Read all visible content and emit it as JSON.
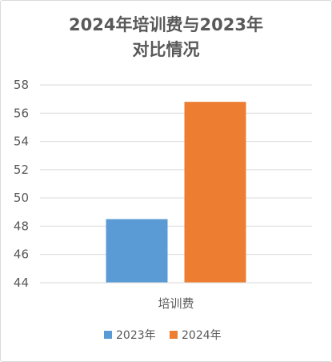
{
  "chart_data": {
    "type": "bar",
    "title_lines": [
      "2024年培训费与2023年",
      "对比情况"
    ],
    "categories": [
      "培训费"
    ],
    "series": [
      {
        "name": "2023年",
        "values": [
          48.5
        ],
        "color": "#5b9bd5"
      },
      {
        "name": "2024年",
        "values": [
          56.8
        ],
        "color": "#ed7d31"
      }
    ],
    "ylim": [
      44,
      58
    ],
    "yticks": [
      "44",
      "46",
      "48",
      "50",
      "52",
      "54",
      "56",
      "58"
    ],
    "grid": true,
    "legend_position": "bottom"
  }
}
